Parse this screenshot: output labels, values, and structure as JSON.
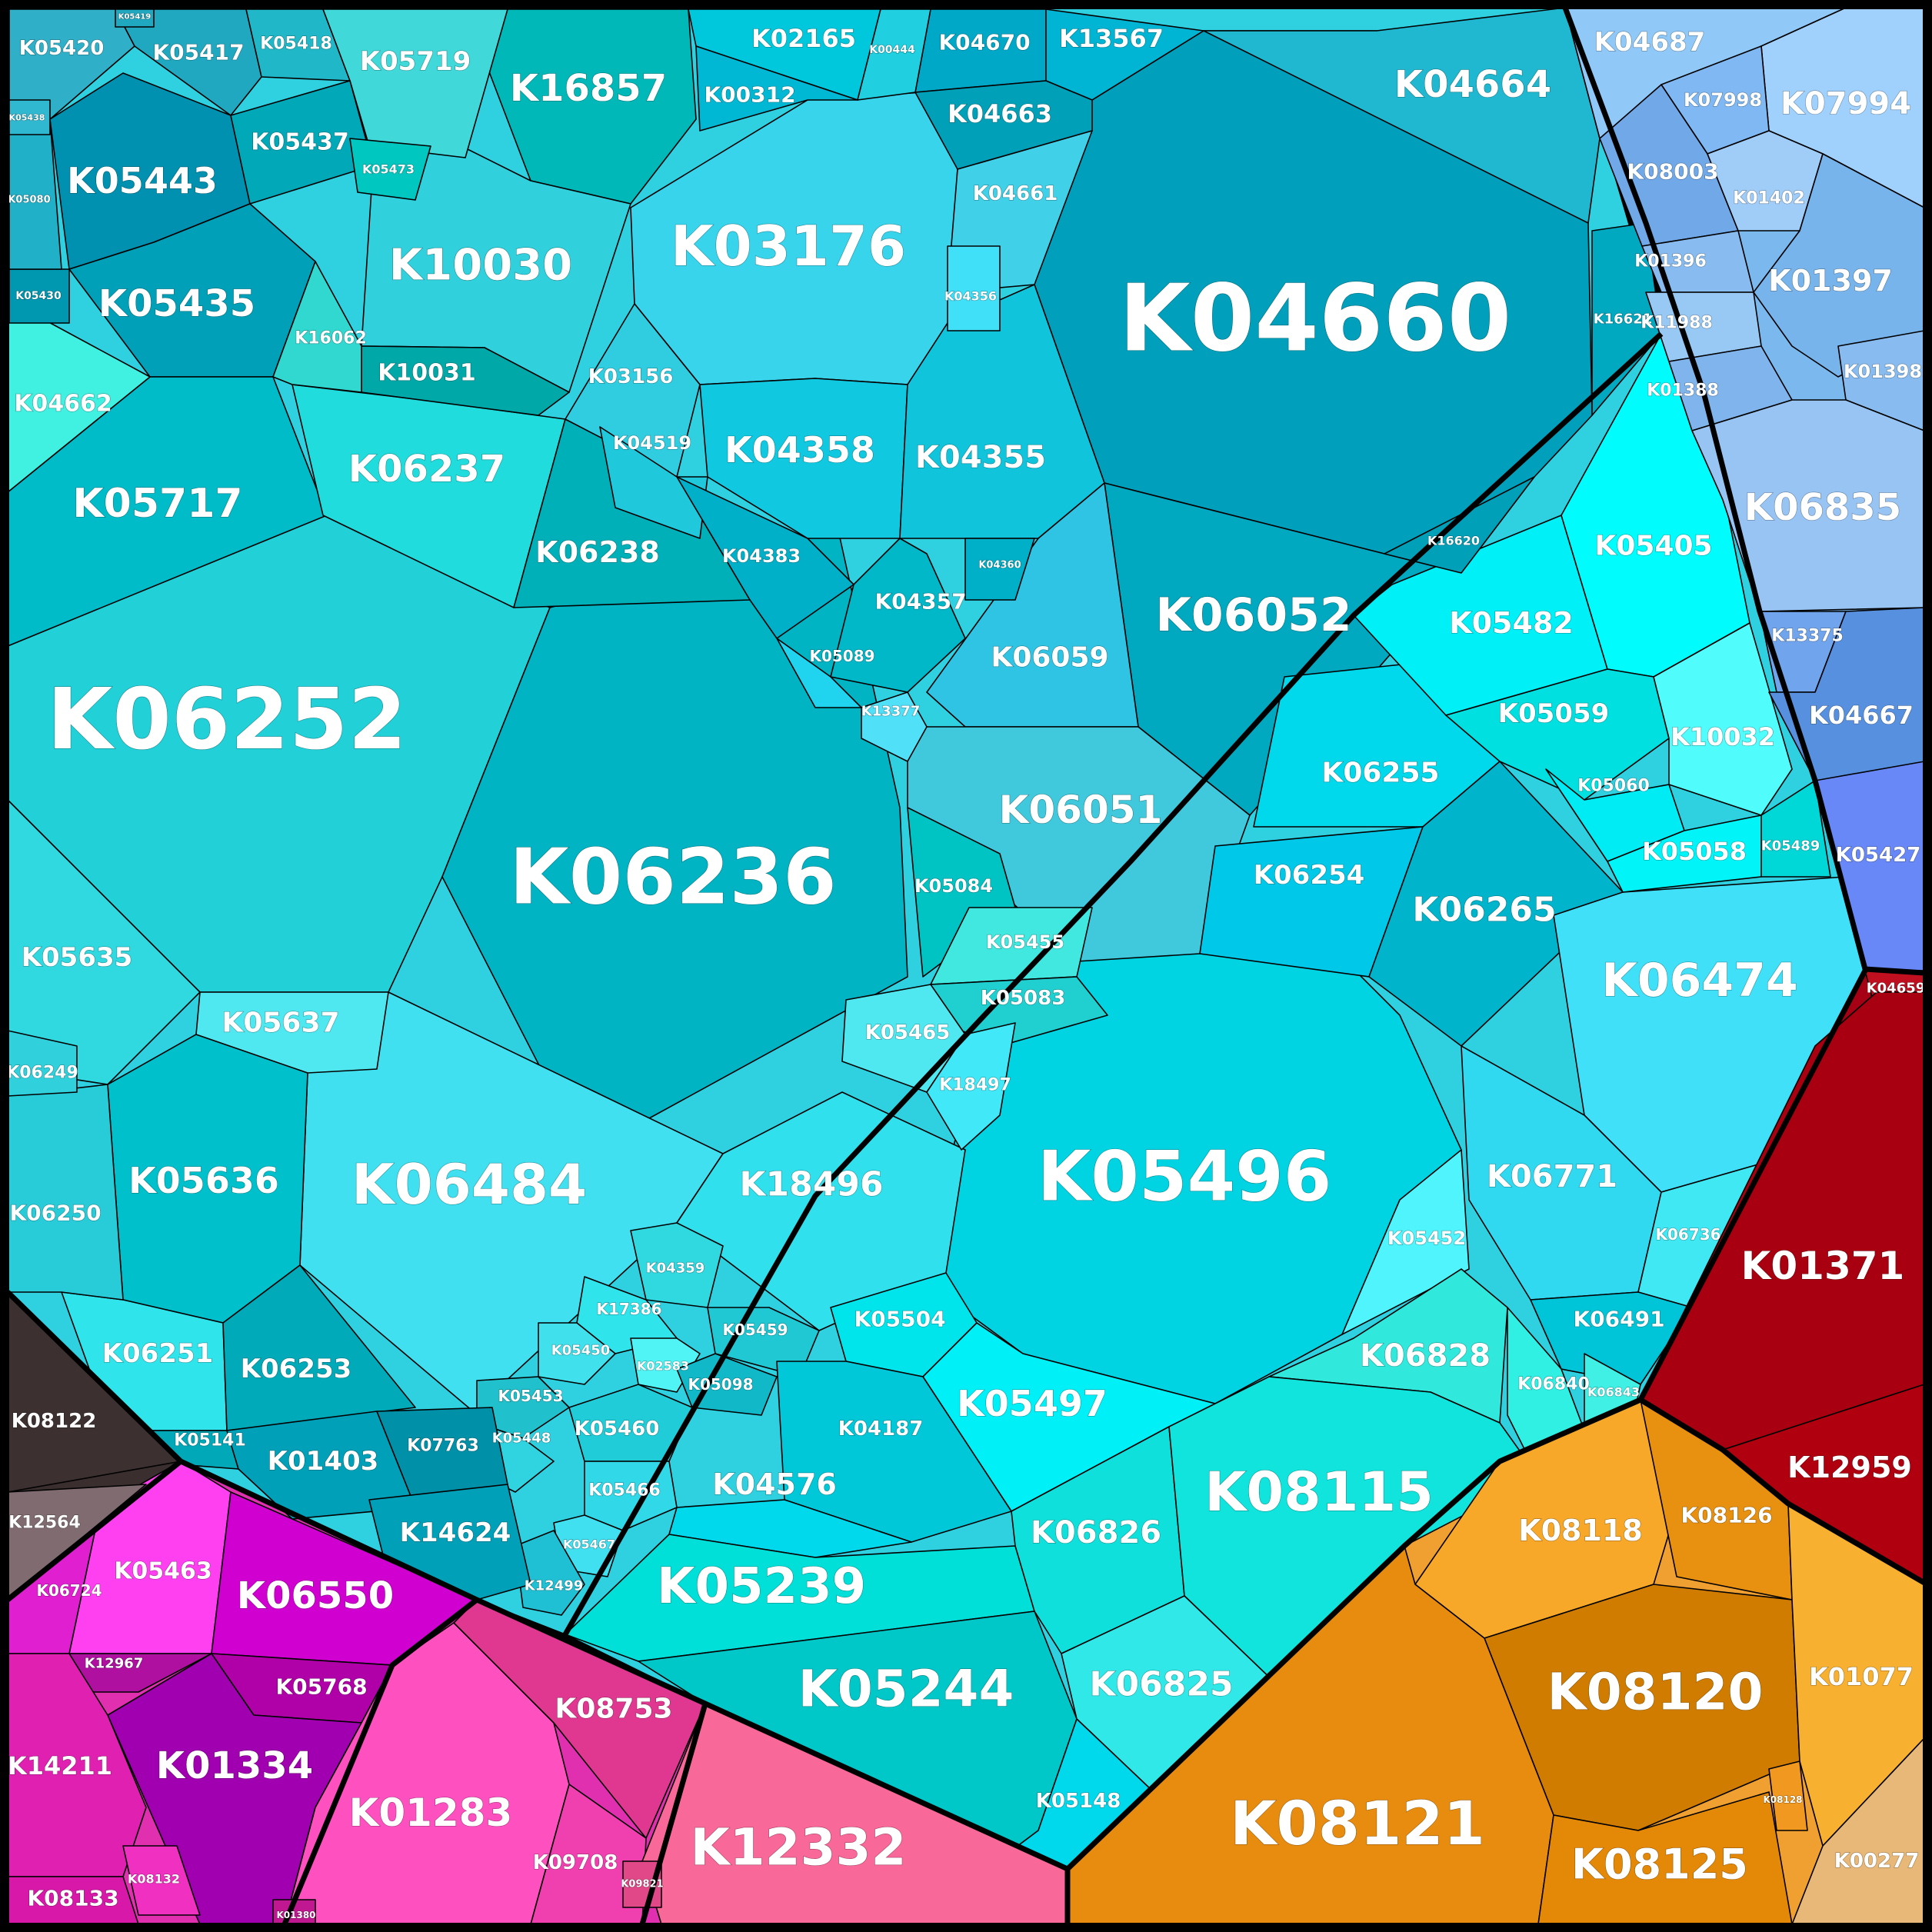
{
  "diagram": {
    "type": "voronoi-treemap",
    "regions": [
      {
        "name": "cyan",
        "color": "#2fd1e0",
        "cells": [
          {
            "label": "K04660",
            "color": "#00a0bc"
          },
          {
            "label": "K06252",
            "color": "#22d0d8"
          },
          {
            "label": "K06236",
            "color": "#00b4c4"
          },
          {
            "label": "K05496",
            "color": "#00d4e2"
          },
          {
            "label": "K06484",
            "color": "#40e0f0"
          },
          {
            "label": "K03176",
            "color": "#38d4ec"
          },
          {
            "label": "K06052",
            "color": "#00a8c0"
          },
          {
            "label": "K04664",
            "color": "#20b8d0"
          },
          {
            "label": "K16857",
            "color": "#00b8b8"
          },
          {
            "label": "K10030",
            "color": "#30d0dc"
          },
          {
            "label": "K05443",
            "color": "#0090b0"
          },
          {
            "label": "K05435",
            "color": "#00a0b8"
          },
          {
            "label": "K05717",
            "color": "#00bcc8"
          },
          {
            "label": "K06237",
            "color": "#20dcdc"
          },
          {
            "label": "K06238",
            "color": "#00b0b8"
          },
          {
            "label": "K04358",
            "color": "#10c8e0"
          },
          {
            "label": "K04355",
            "color": "#10c4dc"
          },
          {
            "label": "K06059",
            "color": "#30c4e4"
          },
          {
            "label": "K06051",
            "color": "#40c8dc"
          },
          {
            "label": "K05636",
            "color": "#00c0cc"
          },
          {
            "label": "K18496",
            "color": "#30e0ec"
          },
          {
            "label": "K05637",
            "color": "#50e8f0"
          },
          {
            "label": "K05635",
            "color": "#30d8e0"
          },
          {
            "label": "K06251",
            "color": "#30e4ec"
          },
          {
            "label": "K06253",
            "color": "#00aab8"
          },
          {
            "label": "K06250",
            "color": "#28ccd8"
          },
          {
            "label": "K05420",
            "color": "#30b0c8"
          },
          {
            "label": "K05417",
            "color": "#20a8c0"
          },
          {
            "label": "K05418",
            "color": "#20b8c8"
          },
          {
            "label": "K05719",
            "color": "#40d8d8"
          },
          {
            "label": "K02165",
            "color": "#00c8dc"
          },
          {
            "label": "K00312",
            "color": "#00b8d4"
          },
          {
            "label": "K04670",
            "color": "#00a8c8"
          },
          {
            "label": "K13567",
            "color": "#00b4d4"
          },
          {
            "label": "K04663",
            "color": "#00a0b8"
          },
          {
            "label": "K04661",
            "color": "#40d0e8"
          },
          {
            "label": "K05437",
            "color": "#00a8b8"
          },
          {
            "label": "K04662",
            "color": "#40f0e0"
          },
          {
            "label": "K10031",
            "color": "#00a8a8"
          },
          {
            "label": "K16062",
            "color": "#30d8d0"
          },
          {
            "label": "K03156",
            "color": "#30cce0"
          },
          {
            "label": "K04519",
            "color": "#20c8dc"
          },
          {
            "label": "K04383",
            "color": "#00b0c8"
          },
          {
            "label": "K04357",
            "color": "#00b8c8"
          },
          {
            "label": "K05089",
            "color": "#20d4f0"
          },
          {
            "label": "K13377",
            "color": "#50e0f8"
          },
          {
            "label": "K05084",
            "color": "#00c4c4"
          },
          {
            "label": "K05455",
            "color": "#40e8e0"
          },
          {
            "label": "K05083",
            "color": "#20d0d0"
          },
          {
            "label": "K05465",
            "color": "#50e8f0"
          },
          {
            "label": "K18497",
            "color": "#40e8f8"
          },
          {
            "label": "K04359",
            "color": "#30d8e0"
          },
          {
            "label": "K17386",
            "color": "#30e4ec"
          },
          {
            "label": "K05459",
            "color": "#20c8d4"
          },
          {
            "label": "K05450",
            "color": "#40e0ec"
          },
          {
            "label": "K02583",
            "color": "#50f4f4"
          },
          {
            "label": "K05453",
            "color": "#20c0cc"
          },
          {
            "label": "K05098",
            "color": "#10b8c8"
          },
          {
            "label": "K05460",
            "color": "#20ccd8"
          },
          {
            "label": "K05448",
            "color": "#30d4e0"
          },
          {
            "label": "K05466",
            "color": "#30d8e8"
          },
          {
            "label": "K05467",
            "color": "#40e0f0"
          },
          {
            "label": "K12499",
            "color": "#20c0d4"
          },
          {
            "label": "K05141",
            "color": "#00a8b8"
          },
          {
            "label": "K01403",
            "color": "#00a0b8"
          },
          {
            "label": "K07763",
            "color": "#0090a8"
          },
          {
            "label": "K14624",
            "color": "#00a0b8"
          },
          {
            "label": "K06249",
            "color": "#30d0dc"
          },
          {
            "label": "K06255",
            "color": "#00d8ec"
          },
          {
            "label": "K06254",
            "color": "#00c8e8"
          },
          {
            "label": "K06265",
            "color": "#00b4cc"
          },
          {
            "label": "K06474",
            "color": "#40e0f8"
          },
          {
            "label": "K06771",
            "color": "#30d8f0"
          },
          {
            "label": "K05452",
            "color": "#50f4fc"
          },
          {
            "label": "K06736",
            "color": "#40e8f4"
          },
          {
            "label": "K06491",
            "color": "#00c4d8"
          },
          {
            "label": "K06828",
            "color": "#30e8dc"
          },
          {
            "label": "K06840",
            "color": "#30f0e4"
          },
          {
            "label": "K06843",
            "color": "#40f0e4"
          },
          {
            "label": "K05504",
            "color": "#00e4ec"
          },
          {
            "label": "K05497",
            "color": "#00f0f8"
          },
          {
            "label": "K04187",
            "color": "#00c8d8"
          },
          {
            "label": "K04576",
            "color": "#00d8ec"
          },
          {
            "label": "K05239",
            "color": "#00e0d8"
          },
          {
            "label": "K05244",
            "color": "#00c8c8"
          },
          {
            "label": "K06826",
            "color": "#10e0dc"
          },
          {
            "label": "K08115",
            "color": "#10e4dc"
          },
          {
            "label": "K06825",
            "color": "#30e8e8"
          },
          {
            "label": "K05148",
            "color": "#00d8ec"
          },
          {
            "label": "K05482",
            "color": "#00f0f8"
          },
          {
            "label": "K05405",
            "color": "#00fcfc"
          },
          {
            "label": "K05059",
            "color": "#00e0e0"
          },
          {
            "label": "K10032",
            "color": "#50fcfc"
          },
          {
            "label": "K05060",
            "color": "#00ecf4"
          },
          {
            "label": "K05058",
            "color": "#00f4f8"
          },
          {
            "label": "K05489",
            "color": "#00d8d8"
          },
          {
            "label": "K16621",
            "color": "#00a8c0"
          },
          {
            "label": "K16620",
            "color": "#00a0b8"
          },
          {
            "label": "K04356",
            "color": "#40e0f8"
          },
          {
            "label": "K04360",
            "color": "#00b0c8"
          },
          {
            "label": "K05473",
            "color": "#00c8c0"
          },
          {
            "label": "K05430",
            "color": "#0098b0"
          },
          {
            "label": "K05080",
            "color": "#20b0c8"
          },
          {
            "label": "K05438",
            "color": "#30b8d0"
          },
          {
            "label": "K00444",
            "color": "#20d0e0"
          },
          {
            "label": "K05419",
            "color": "#20a8c0"
          }
        ]
      },
      {
        "name": "blue",
        "color": "#7ab8ee",
        "cells": [
          {
            "label": "K04687",
            "color": "#90c8f8"
          },
          {
            "label": "K07994",
            "color": "#a0d0fc"
          },
          {
            "label": "K07998",
            "color": "#80b8f4"
          },
          {
            "label": "K08003",
            "color": "#70a8e8"
          },
          {
            "label": "K01402",
            "color": "#a0ccf8"
          },
          {
            "label": "K01396",
            "color": "#88bcf0"
          },
          {
            "label": "K01397",
            "color": "#78b4ec"
          },
          {
            "label": "K11988",
            "color": "#98c8f4"
          },
          {
            "label": "K01388",
            "color": "#80b4ec"
          },
          {
            "label": "K01398",
            "color": "#88bcf0"
          },
          {
            "label": "K06835",
            "color": "#98c4f4"
          },
          {
            "label": "K13375",
            "color": "#70a4ec"
          },
          {
            "label": "K04667",
            "color": "#5890e0"
          },
          {
            "label": "K05427",
            "color": "#6888f8"
          }
        ]
      },
      {
        "name": "red",
        "color": "#a50013",
        "cells": [
          {
            "label": "K04659",
            "color": "#c01020"
          },
          {
            "label": "K01371",
            "color": "#a80010"
          },
          {
            "label": "K12959",
            "color": "#b00010"
          }
        ]
      },
      {
        "name": "orange",
        "color": "#f0a030",
        "cells": [
          {
            "label": "K08118",
            "color": "#f8a828"
          },
          {
            "label": "K08126",
            "color": "#e89010"
          },
          {
            "label": "K08120",
            "color": "#d07c00"
          },
          {
            "label": "K01077",
            "color": "#f8b030"
          },
          {
            "label": "K08121",
            "color": "#e88c10"
          },
          {
            "label": "K08125",
            "color": "#e48808"
          },
          {
            "label": "K08128",
            "color": "#f09820"
          },
          {
            "label": "K00277",
            "color": "#e8b878"
          }
        ]
      },
      {
        "name": "magenta",
        "color": "#e030b0",
        "cells": [
          {
            "label": "K05463",
            "color": "#ff40f0"
          },
          {
            "label": "K06550",
            "color": "#d000d0"
          },
          {
            "label": "K06724",
            "color": "#e020d0"
          },
          {
            "label": "K12967",
            "color": "#b010a0"
          },
          {
            "label": "K05768",
            "color": "#b000a8"
          },
          {
            "label": "K01334",
            "color": "#a000b0"
          },
          {
            "label": "K14211",
            "color": "#e020b0"
          },
          {
            "label": "K08133",
            "color": "#d818a8"
          },
          {
            "label": "K08132",
            "color": "#f030c0"
          },
          {
            "label": "K01283",
            "color": "#ff50c0"
          },
          {
            "label": "K08753",
            "color": "#e03890"
          },
          {
            "label": "K09708",
            "color": "#f040b0"
          },
          {
            "label": "K12332",
            "color": "#f86898"
          },
          {
            "label": "K09821",
            "color": "#e04888"
          },
          {
            "label": "K01380",
            "color": "#c01890"
          }
        ]
      },
      {
        "name": "brown",
        "color": "#3a2e2e",
        "cells": [
          {
            "label": "K08122",
            "color": "#3c3030"
          },
          {
            "label": "K12564",
            "color": "#806c70"
          }
        ]
      }
    ]
  }
}
